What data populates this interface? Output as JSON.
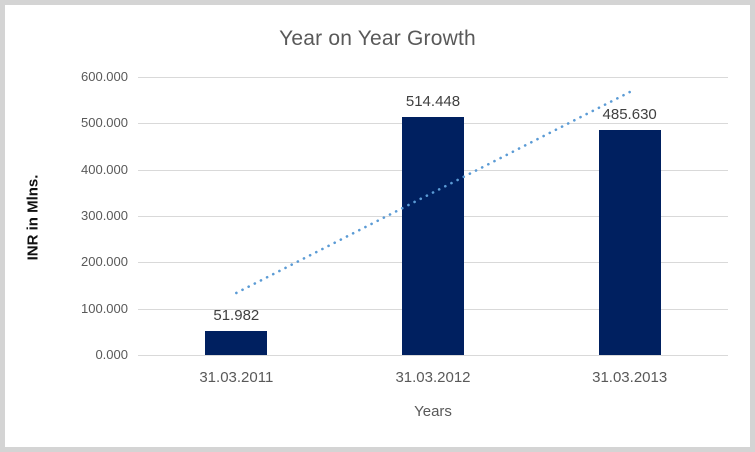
{
  "chart_data": {
    "type": "bar",
    "title": "Year on Year Growth",
    "categories": [
      "31.03.2011",
      "31.03.2012",
      "31.03.2013"
    ],
    "values": [
      51.982,
      514.448,
      485.63
    ],
    "data_labels": [
      "51.982",
      "514.448",
      "485.630"
    ],
    "xlabel": "Years",
    "ylabel": "INR in Mlns.",
    "ylim": [
      0,
      600
    ],
    "ytick_step": 100,
    "ytick_labels": [
      "0.000",
      "100.000",
      "200.000",
      "300.000",
      "400.000",
      "500.000",
      "600.000"
    ],
    "grid": true,
    "legend": "none",
    "colors": {
      "bar": "#002060",
      "trendline": "#5B9BD5",
      "gridline": "#d9d9d9",
      "title_text": "#595959",
      "tick_text": "#595959",
      "data_label_text": "#404040"
    },
    "trendline": {
      "type": "linear",
      "style": "dotted",
      "color": "#5B9BD5",
      "start_value": 133.9,
      "end_value": 567.5
    }
  }
}
